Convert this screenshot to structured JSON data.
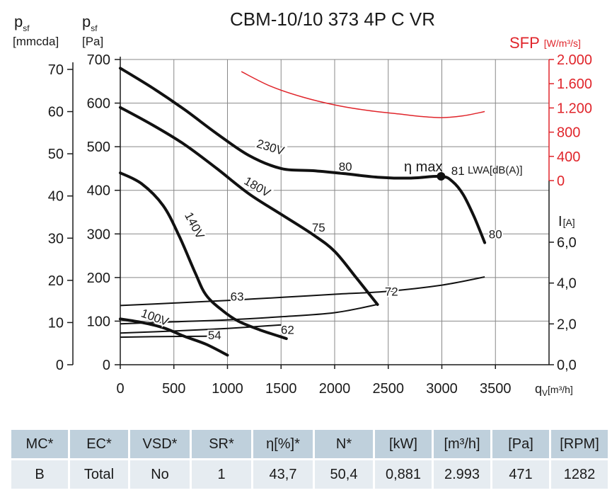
{
  "chart_data": {
    "type": "line",
    "title": "CBM-10/10 373 4P C VR",
    "x_axis": {
      "label_main": "q",
      "label_sub": "V",
      "label_unit": "[m³/h]",
      "range": [
        0,
        3500
      ],
      "ticks": [
        0,
        500,
        1000,
        1500,
        2000,
        2500,
        3000,
        3500
      ]
    },
    "y_axis_pa": {
      "label_main": "p",
      "label_sub": "sf",
      "label_unit": "[Pa]",
      "range": [
        0,
        700
      ],
      "ticks": [
        0,
        100,
        200,
        300,
        400,
        500,
        600,
        700
      ]
    },
    "y_axis_mmcda": {
      "label_main": "p",
      "label_sub": "sf",
      "label_unit": "[mmcda]",
      "ticks": [
        0,
        10,
        20,
        30,
        40,
        50,
        60,
        70
      ]
    },
    "y_axis_sfp": {
      "label": "SFP",
      "label_unit": "[W/m³/s]",
      "color": "#e0252b",
      "range": [
        0,
        2000
      ],
      "ticks": [
        "0",
        "400",
        "800",
        "1.200",
        "1.600",
        "2.000"
      ]
    },
    "y_axis_current": {
      "label": "I",
      "label_unit": "[A]",
      "range": [
        0,
        7.4
      ],
      "ticks": [
        "0,0",
        "2,0",
        "4,0",
        "6,0"
      ]
    },
    "grid": true,
    "pressure_curves": [
      {
        "name": "230V",
        "x": [
          0,
          300,
          600,
          900,
          1200,
          1500,
          1800,
          2100,
          2400,
          2700,
          2993,
          3100,
          3200,
          3300,
          3400
        ],
        "y": [
          680,
          635,
          585,
          530,
          480,
          450,
          445,
          438,
          430,
          428,
          432,
          420,
          390,
          340,
          280
        ]
      },
      {
        "name": "180V",
        "x": [
          0,
          300,
          600,
          900,
          1200,
          1500,
          1800,
          2000,
          2200,
          2400
        ],
        "y": [
          590,
          550,
          505,
          450,
          392,
          345,
          298,
          260,
          200,
          138
        ]
      },
      {
        "name": "140V",
        "x": [
          0,
          200,
          400,
          550,
          700,
          800,
          950,
          1100,
          1300,
          1550
        ],
        "y": [
          440,
          415,
          365,
          295,
          210,
          160,
          125,
          100,
          80,
          60
        ]
      },
      {
        "name": "100V",
        "x": [
          0,
          200,
          400,
          600,
          800,
          1000
        ],
        "y": [
          105,
          97,
          85,
          65,
          47,
          22
        ]
      }
    ],
    "current_curves": [
      {
        "name": "230V",
        "x": [
          0,
          500,
          1000,
          1500,
          2000,
          2500,
          3000,
          3400
        ],
        "y": [
          2.9,
          3.02,
          3.15,
          3.3,
          3.45,
          3.6,
          3.9,
          4.3
        ]
      },
      {
        "name": "180V",
        "x": [
          0,
          500,
          1000,
          1500,
          2000,
          2400
        ],
        "y": [
          2.0,
          2.1,
          2.2,
          2.35,
          2.55,
          2.95
        ]
      },
      {
        "name": "140V",
        "x": [
          0,
          500,
          1000,
          1500
        ],
        "y": [
          1.55,
          1.65,
          1.78,
          1.95
        ]
      },
      {
        "name": "100V",
        "x": [
          0,
          400,
          900
        ],
        "y": [
          1.35,
          1.38,
          1.4
        ]
      }
    ],
    "sfp_curve": {
      "x": [
        1130,
        1400,
        1700,
        2000,
        2300,
        2600,
        2800,
        3000,
        3200,
        3400
      ],
      "y": [
        1800,
        1560,
        1380,
        1250,
        1160,
        1100,
        1060,
        1040,
        1070,
        1140
      ]
    },
    "sound_labels": [
      {
        "text": "80",
        "x": 2100,
        "y": 455
      },
      {
        "text": "75",
        "x": 1850,
        "y": 315
      },
      {
        "text": "72",
        "x": 2530,
        "y": 168
      },
      {
        "text": "63",
        "x": 1090,
        "y": 157
      },
      {
        "text": "62",
        "x": 1560,
        "y": 80
      },
      {
        "text": "54",
        "x": 880,
        "y": 68
      },
      {
        "text": "81",
        "x": 3150,
        "y": 445
      },
      {
        "text": "80",
        "x": 3500,
        "y": 300
      }
    ],
    "voltage_labels": [
      {
        "text": "230V",
        "x": 1390,
        "y": 490,
        "angle": 17
      },
      {
        "text": "180V",
        "x": 1260,
        "y": 400,
        "angle": 30
      },
      {
        "text": "140V",
        "x": 660,
        "y": 315,
        "angle": 62
      },
      {
        "text": "100V",
        "x": 310,
        "y": 100,
        "angle": 20
      }
    ],
    "operating_point": {
      "label": "η max",
      "x": 2993,
      "y": 432
    },
    "sound_unit_label": "LWA[dB(A)]"
  },
  "table": {
    "headers": [
      "MC*",
      "EC*",
      "VSD*",
      "SR*",
      "η[%]*",
      "N*",
      "[kW]",
      "[m³/h]",
      "[Pa]",
      "[RPM]"
    ],
    "values": [
      "B",
      "Total",
      "No",
      "1",
      "43,7",
      "50,4",
      "0,881",
      "2.993",
      "471",
      "1282"
    ]
  },
  "colors": {
    "curve": "#111111",
    "sfp": "#e0252b",
    "grid": "#888888",
    "table_header": "#bfd0dc",
    "table_row": "#e6ecf1"
  }
}
